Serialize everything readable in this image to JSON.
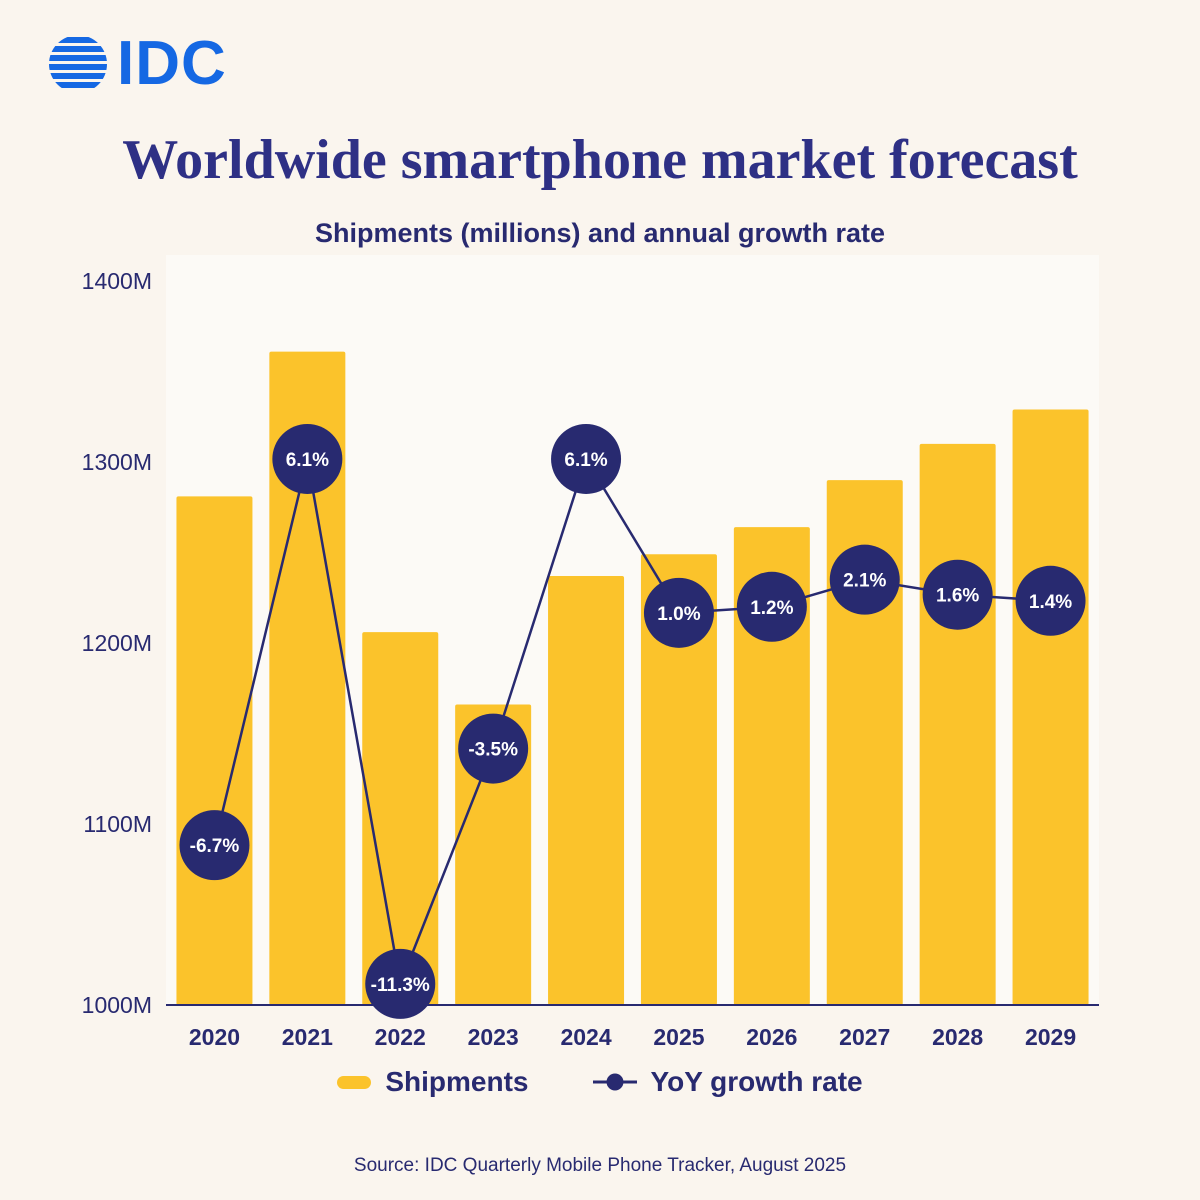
{
  "logo": {
    "text": "IDC"
  },
  "title": "Worldwide smartphone market forecast",
  "subtitle": "Shipments (millions) and annual growth rate",
  "legend": {
    "shipments_label": "Shipments",
    "yoy_label": "YoY growth rate"
  },
  "source": "Source:  IDC Quarterly Mobile Phone Tracker, August 2025",
  "colors": {
    "background": "#FAF5EE",
    "plot_background": "#FCFAF6",
    "bar_yellow": "#FBC32B",
    "navy": "#282A70",
    "title_navy": "#2E3085",
    "logo_blue": "#1568E3",
    "marker_text": "#FFFFFF"
  },
  "chart_data": {
    "type": "bar",
    "title": "Worldwide smartphone market forecast",
    "subtitle": "Shipments (millions) and annual growth rate",
    "categories": [
      "2020",
      "2021",
      "2022",
      "2023",
      "2024",
      "2025",
      "2026",
      "2027",
      "2028",
      "2029"
    ],
    "series": [
      {
        "name": "Shipments",
        "type": "bar",
        "unit": "millions",
        "values": [
          1281,
          1361,
          1206,
          1166,
          1237,
          1249,
          1264,
          1290,
          1310,
          1329
        ]
      },
      {
        "name": "YoY growth rate",
        "type": "line",
        "unit": "%",
        "values": [
          -6.7,
          6.1,
          -11.3,
          -3.5,
          6.1,
          1.0,
          1.2,
          2.1,
          1.6,
          1.4
        ],
        "labels": [
          "-6.7%",
          "6.1%",
          "-11.3%",
          "-3.5%",
          "6.1%",
          "1.0%",
          "1.2%",
          "2.1%",
          "1.6%",
          "1.4%"
        ]
      }
    ],
    "y_axis": {
      "ticks": [
        "1000M",
        "1100M",
        "1200M",
        "1300M",
        "1400M"
      ],
      "tick_values": [
        1000,
        1100,
        1200,
        1300,
        1400
      ],
      "lim": [
        1000,
        1400
      ]
    },
    "y2_axis": {
      "lim": [
        -12,
        12
      ],
      "visible": false
    },
    "legend_position": "bottom",
    "grid": false
  }
}
